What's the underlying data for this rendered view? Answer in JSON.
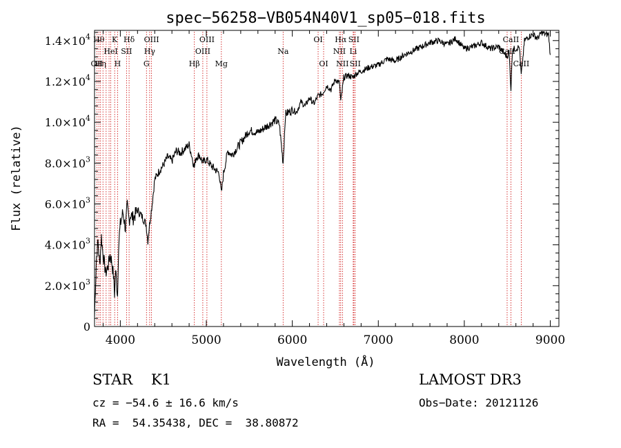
{
  "chart_data": {
    "type": "line",
    "title": "spec−56258−VB054N40V1_sp05−018.fits",
    "xlabel": "Wavelength (Å)",
    "ylabel": "Flux (relative)",
    "xlim": [
      3700,
      9100
    ],
    "ylim": [
      0,
      14500
    ],
    "x_ticks": [
      {
        "v": 4000,
        "label": "4000"
      },
      {
        "v": 5000,
        "label": "5000"
      },
      {
        "v": 6000,
        "label": "6000"
      },
      {
        "v": 7000,
        "label": "7000"
      },
      {
        "v": 8000,
        "label": "8000"
      },
      {
        "v": 9000,
        "label": "9000"
      }
    ],
    "y_ticks": [
      {
        "v": 0,
        "mant": "0",
        "exp": ""
      },
      {
        "v": 2000,
        "mant": "2.0×10",
        "exp": "3"
      },
      {
        "v": 4000,
        "mant": "4.0×10",
        "exp": "3"
      },
      {
        "v": 6000,
        "mant": "6.0×10",
        "exp": "3"
      },
      {
        "v": 8000,
        "mant": "8.0×10",
        "exp": "3"
      },
      {
        "v": 10000,
        "mant": "1.0×10",
        "exp": "4"
      },
      {
        "v": 12000,
        "mant": "1.2×10",
        "exp": "4"
      },
      {
        "v": 14000,
        "mant": "1.4×10",
        "exp": "4"
      }
    ],
    "series": [
      {
        "x": [
          3700,
          3720,
          3740,
          3760,
          3780,
          3800,
          3830,
          3860,
          3880,
          3900,
          3920,
          3933,
          3945,
          3968,
          3980,
          4000,
          4030,
          4060,
          4080,
          4102,
          4120,
          4150,
          4200,
          4250,
          4300,
          4320,
          4340,
          4370,
          4400,
          4450,
          4500,
          4550,
          4600,
          4650,
          4700,
          4750,
          4800,
          4861,
          4880,
          4920,
          4960,
          5000,
          5050,
          5100,
          5150,
          5175,
          5200,
          5250,
          5300,
          5400,
          5500,
          5600,
          5700,
          5800,
          5850,
          5893,
          5920,
          6000,
          6050,
          6100,
          6150,
          6200,
          6250,
          6300,
          6350,
          6400,
          6450,
          6500,
          6550,
          6563,
          6600,
          6650,
          6700,
          6750,
          6800,
          6900,
          7000,
          7100,
          7200,
          7300,
          7400,
          7500,
          7600,
          7700,
          7800,
          7900,
          8000,
          8100,
          8200,
          8300,
          8400,
          8498,
          8520,
          8542,
          8560,
          8600,
          8640,
          8662,
          8700,
          8750,
          8800,
          8850,
          8900,
          8950,
          8980,
          9000
        ],
        "y": [
          500,
          3200,
          4200,
          3000,
          4400,
          3500,
          2600,
          3000,
          3500,
          3200,
          2500,
          1600,
          2800,
          1500,
          4000,
          5000,
          5600,
          4800,
          5900,
          5200,
          5500,
          5300,
          5700,
          5400,
          5000,
          4200,
          5000,
          6000,
          7200,
          7600,
          7900,
          8300,
          8100,
          8600,
          8500,
          8700,
          8900,
          7800,
          8300,
          8400,
          8000,
          8200,
          7900,
          7700,
          7500,
          6500,
          7500,
          8600,
          8400,
          9000,
          9600,
          9500,
          9800,
          10100,
          9900,
          8000,
          10400,
          10600,
          10500,
          11000,
          10800,
          11200,
          10900,
          11300,
          11400,
          11800,
          11600,
          12100,
          11900,
          11000,
          12200,
          12300,
          12200,
          12400,
          12500,
          12700,
          12800,
          13100,
          13000,
          13300,
          13500,
          13700,
          13900,
          14000,
          13800,
          14100,
          13600,
          13700,
          13900,
          13600,
          13700,
          13200,
          13500,
          11600,
          13600,
          13600,
          13700,
          12300,
          14000,
          14200,
          14300,
          14100,
          14400,
          14300,
          14300,
          13300
        ]
      }
    ],
    "lines": [
      {
        "x": 3727,
        "label": "OII",
        "row": 3
      },
      {
        "x": 3750,
        "label": "Hθ",
        "row": 1
      },
      {
        "x": 3770,
        "label": "Hη",
        "row": 3
      },
      {
        "x": 3798,
        "label": "",
        "row": 0
      },
      {
        "x": 3835,
        "label": "",
        "row": 0
      },
      {
        "x": 3869,
        "label": "",
        "row": 0
      },
      {
        "x": 3889,
        "label": "HeI",
        "row": 2
      },
      {
        "x": 3934,
        "label": "K",
        "row": 1
      },
      {
        "x": 3968,
        "label": "H",
        "row": 3
      },
      {
        "x": 4072,
        "label": "SII",
        "row": 2
      },
      {
        "x": 4102,
        "label": "Hδ",
        "row": 1
      },
      {
        "x": 4304,
        "label": "G",
        "row": 3
      },
      {
        "x": 4341,
        "label": "Hγ",
        "row": 2
      },
      {
        "x": 4363,
        "label": "OIII",
        "row": 1
      },
      {
        "x": 4861,
        "label": "Hβ",
        "row": 3
      },
      {
        "x": 4959,
        "label": "OIII",
        "row": 2
      },
      {
        "x": 5007,
        "label": "OIII",
        "row": 1
      },
      {
        "x": 5175,
        "label": "Mg",
        "row": 3
      },
      {
        "x": 5893,
        "label": "Na",
        "row": 2
      },
      {
        "x": 6300,
        "label": "OI",
        "row": 1
      },
      {
        "x": 6364,
        "label": "OI",
        "row": 3
      },
      {
        "x": 6548,
        "label": "NII",
        "row": 2
      },
      {
        "x": 6563,
        "label": "Hα",
        "row": 1
      },
      {
        "x": 6583,
        "label": "NII",
        "row": 3
      },
      {
        "x": 6708,
        "label": "Li",
        "row": 2
      },
      {
        "x": 6716,
        "label": "SII",
        "row": 1
      },
      {
        "x": 6731,
        "label": "SII",
        "row": 3
      },
      {
        "x": 8498,
        "label": "CaII",
        "row": 2
      },
      {
        "x": 8542,
        "label": "CaII",
        "row": 1
      },
      {
        "x": 8662,
        "label": "CaII",
        "row": 3
      }
    ],
    "grid": false,
    "legend": "none"
  },
  "info": {
    "class_line": "STAR    K1",
    "survey": "LAMOST DR3",
    "cz": "cz = −54.6 ± 16.6 km/s",
    "obs_date": "Obs−Date: 20121126",
    "coords": "RA =  54.35438, DEC =  38.80872"
  },
  "colors": {
    "spectrum": "#000000",
    "line_markers": "#cc0000",
    "axes": "#000000"
  }
}
